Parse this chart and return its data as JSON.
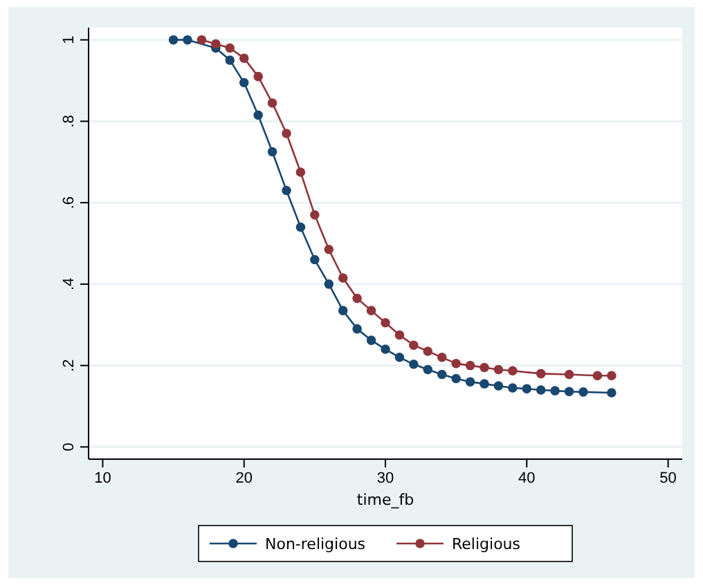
{
  "chart_data": {
    "type": "line",
    "xlabel": "time_fb",
    "xlim": [
      9,
      51
    ],
    "ylim": [
      -0.03,
      1.03
    ],
    "xticks": [
      10,
      20,
      30,
      40,
      50
    ],
    "yticks": [
      {
        "value": 0,
        "label": "0"
      },
      {
        "value": 0.2,
        "label": ".2"
      },
      {
        "value": 0.4,
        "label": ".4"
      },
      {
        "value": 0.6,
        "label": ".6"
      },
      {
        "value": 0.8,
        "label": ".8"
      },
      {
        "value": 1,
        "label": "1"
      }
    ],
    "grid": "y",
    "legend": "bottom",
    "marker": "circle",
    "line_style": "solid",
    "series": [
      {
        "name": "Non-religious",
        "color": "#1a476f",
        "x": [
          15,
          16,
          17,
          18,
          19,
          20,
          21,
          22,
          23,
          24,
          25,
          26,
          27,
          28,
          29,
          30,
          31,
          32,
          33,
          34,
          35,
          36,
          37,
          38,
          39,
          40,
          41,
          42,
          43,
          44,
          46
        ],
        "values": [
          1,
          1,
          null,
          0.98,
          0.95,
          0.895,
          0.815,
          0.725,
          0.63,
          0.54,
          0.46,
          0.4,
          0.335,
          0.29,
          0.262,
          0.24,
          0.22,
          0.203,
          0.19,
          0.178,
          0.168,
          0.16,
          0.155,
          0.15,
          0.145,
          0.143,
          0.14,
          0.138,
          0.136,
          0.135,
          0.133
        ]
      },
      {
        "name": "Religious",
        "color": "#90353b",
        "x": [
          17,
          18,
          19,
          20,
          21,
          22,
          23,
          24,
          25,
          26,
          27,
          28,
          29,
          30,
          31,
          32,
          33,
          34,
          35,
          36,
          37,
          38,
          39,
          41,
          43,
          45,
          46
        ],
        "values": [
          1,
          0.99,
          0.98,
          0.955,
          0.91,
          0.845,
          0.77,
          0.675,
          0.57,
          0.485,
          0.415,
          0.365,
          0.335,
          0.305,
          0.275,
          0.25,
          0.235,
          0.22,
          0.205,
          0.2,
          0.195,
          0.19,
          0.187,
          0.18,
          0.178,
          0.175,
          0.175
        ]
      }
    ]
  }
}
